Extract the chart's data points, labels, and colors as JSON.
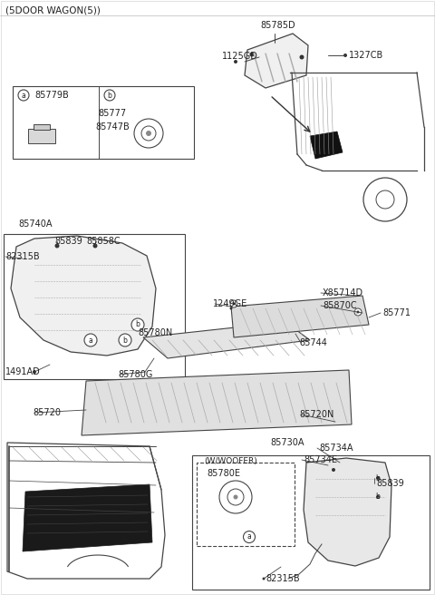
{
  "title": "(5DOOR WAGON(5))",
  "bg_color": "#ffffff",
  "line_color": "#444444",
  "text_color": "#222222",
  "fig_width": 4.8,
  "fig_height": 6.56,
  "dpi": 100,
  "labels": {
    "top_title": "(5DOOR WAGON(5))",
    "box1_part1": "85779B",
    "box1_part2": "85777",
    "box1_part3": "85747B",
    "top_right_part1": "85785D",
    "top_right_part2": "1125GD",
    "top_right_part3": "1327CB",
    "mid_left_label": "85740A",
    "mid_left_p1": "85839",
    "mid_left_p2": "85858C",
    "mid_left_p3": "82315B",
    "mid_left_p4": "1491AD",
    "mid_center_p1": "85780N",
    "mid_center_p2": "85780G",
    "mid_center_p3": "85720",
    "mid_center_p4": "85720N",
    "mid_right_p1": "1249GE",
    "mid_right_p2": "X85714D",
    "mid_right_p3": "85870C",
    "mid_right_p4": "85771",
    "mid_right_p5": "85744",
    "bot_right_label": "85730A",
    "bot_right_p1": "85734A",
    "bot_right_p2": "85734E",
    "bot_right_p3": "85780E",
    "bot_right_p4": "85839",
    "bot_right_p5": "82315B",
    "wwoofer": "(W/WOOFER)"
  }
}
